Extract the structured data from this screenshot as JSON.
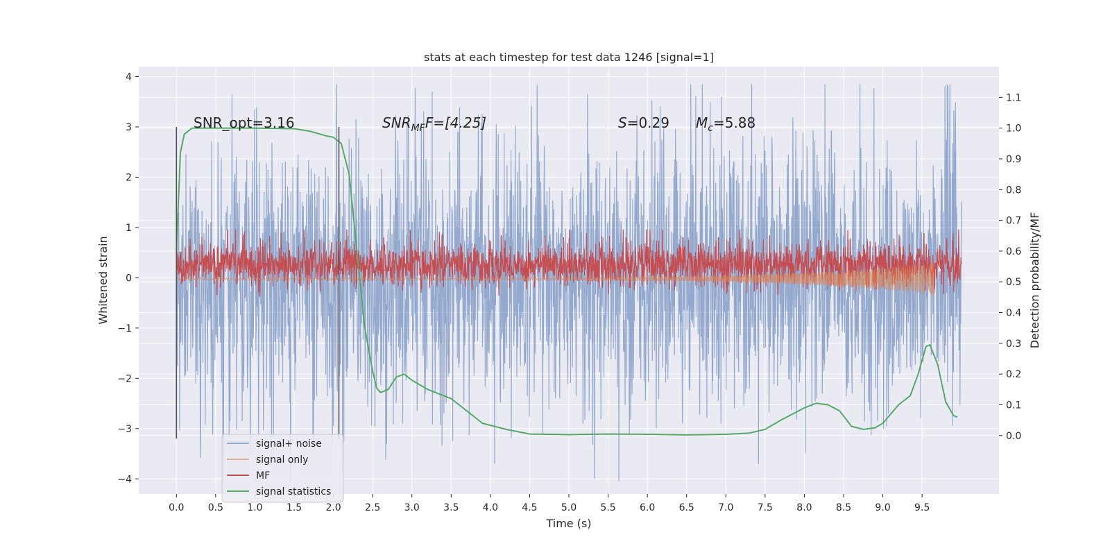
{
  "chart_data": {
    "type": "line",
    "title": "stats at each timestep for test data 1246 [signal=1]",
    "xlabel": "Time (s)",
    "ylabel_left": "Whitened strain",
    "ylabel_right": "Detection probability/MF",
    "xlim": [
      -0.48,
      10.48
    ],
    "ylim_left": [
      -4.3,
      4.2
    ],
    "ylim_right": [
      -0.19,
      1.2
    ],
    "x_ticks": [
      "0.0",
      "0.5",
      "1.0",
      "1.5",
      "2.0",
      "2.5",
      "3.0",
      "3.5",
      "4.0",
      "4.5",
      "5.0",
      "5.5",
      "6.0",
      "6.5",
      "7.0",
      "7.5",
      "8.0",
      "8.5",
      "9.0",
      "9.5"
    ],
    "y_ticks_left": [
      "−4",
      "−3",
      "−2",
      "−1",
      "0",
      "1",
      "2",
      "3",
      "4"
    ],
    "y_ticks_right": [
      "0.0",
      "0.1",
      "0.2",
      "0.3",
      "0.4",
      "0.5",
      "0.6",
      "0.7",
      "0.8",
      "0.9",
      "1.0",
      "1.1"
    ],
    "grid": true,
    "legend_position": "lower-left",
    "colors": {
      "background": "#eaeaf2",
      "grid": "#ffffff",
      "signal_noise": "#4c72b0",
      "signal_only": "#dd8452",
      "mf": "#c44e52",
      "signal_statistics": "#55a868",
      "markers": "#555555"
    },
    "annotations": {
      "snr_opt": "SNR_opt=3.16",
      "snr_mf_prefix": "SNR",
      "snr_mf_sub": "MF",
      "snr_mf_suffix": "F=[4.25]",
      "s_label": "S",
      "s_value": "=0.29",
      "mc_label": "M",
      "mc_sub": "c",
      "mc_value": "=5.88"
    },
    "vertical_markers": [
      0.0,
      2.07
    ],
    "series": [
      {
        "name": "signal+ noise",
        "axis": "left",
        "kind": "noise",
        "x_range": [
          0.0,
          10.0
        ],
        "envelope_low": [
          -3.4,
          -2.7
        ],
        "envelope_high": [
          2.6,
          3.8
        ],
        "peak_min": -4.05,
        "peak_max": 3.85
      },
      {
        "name": "signal only",
        "axis": "left",
        "kind": "chirp",
        "x_range": [
          0.0,
          9.65
        ],
        "amplitude_start": 0.02,
        "amplitude_end": 0.32
      },
      {
        "name": "MF",
        "axis": "right",
        "kind": "noise",
        "x_range": [
          0.0,
          10.0
        ],
        "center": 0.555,
        "amplitude": 0.05,
        "peak_max": 0.67
      },
      {
        "name": "signal statistics",
        "axis": "right",
        "kind": "curve",
        "x": [
          0.0,
          0.05,
          0.1,
          0.15,
          0.2,
          0.3,
          0.5,
          1.0,
          1.5,
          1.7,
          1.9,
          2.0,
          2.1,
          2.2,
          2.3,
          2.4,
          2.5,
          2.55,
          2.6,
          2.7,
          2.8,
          2.9,
          3.0,
          3.2,
          3.5,
          3.7,
          3.9,
          4.2,
          4.5,
          5.0,
          5.5,
          6.0,
          6.5,
          7.0,
          7.3,
          7.5,
          7.7,
          8.0,
          8.15,
          8.3,
          8.45,
          8.6,
          8.75,
          8.9,
          9.0,
          9.2,
          9.35,
          9.45,
          9.55,
          9.6,
          9.7,
          9.8,
          9.9,
          9.95
        ],
        "y": [
          0.6,
          0.92,
          0.98,
          0.99,
          1.0,
          1.0,
          1.0,
          1.0,
          0.998,
          0.99,
          0.975,
          0.97,
          0.95,
          0.85,
          0.6,
          0.35,
          0.21,
          0.155,
          0.14,
          0.15,
          0.19,
          0.2,
          0.18,
          0.15,
          0.12,
          0.08,
          0.04,
          0.02,
          0.005,
          0.003,
          0.005,
          0.004,
          0.002,
          0.004,
          0.008,
          0.02,
          0.05,
          0.09,
          0.105,
          0.1,
          0.08,
          0.03,
          0.02,
          0.025,
          0.04,
          0.1,
          0.13,
          0.2,
          0.29,
          0.295,
          0.23,
          0.11,
          0.065,
          0.06
        ]
      }
    ]
  }
}
